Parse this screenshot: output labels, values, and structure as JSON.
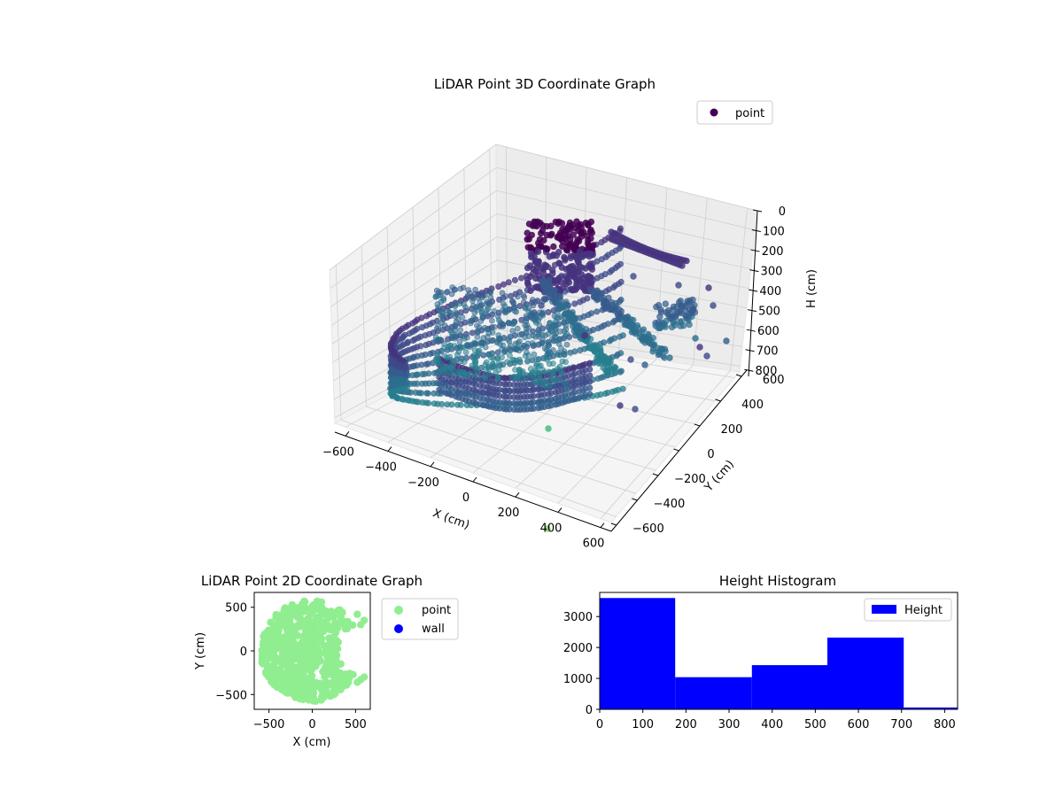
{
  "chart_data": [
    {
      "type": "scatter3d",
      "title": "LiDAR Point 3D Coordinate Graph",
      "xlabel": "X (cm)",
      "ylabel": "Y (cm)",
      "zlabel": "H (cm)",
      "xticks": [
        "−600",
        "−400",
        "−200",
        "0",
        "200",
        "400",
        "600"
      ],
      "yticks": [
        "−600",
        "−400",
        "−200",
        "0",
        "200",
        "400",
        "600"
      ],
      "zticks": [
        "0",
        "100",
        "200",
        "300",
        "400",
        "500",
        "600",
        "700",
        "800"
      ],
      "xlim": [
        -650,
        650
      ],
      "ylim": [
        -650,
        650
      ],
      "zlim": [
        0,
        830
      ],
      "z_inverted": true,
      "colormap": "viridis",
      "legend": {
        "label": "point",
        "color": "#440154",
        "placement": "top-right"
      },
      "grid": true
    },
    {
      "type": "scatter",
      "title": "LiDAR Point 2D Coordinate Graph",
      "xlabel": "X (cm)",
      "ylabel": "Y (cm)",
      "xticks": [
        "−500",
        "0",
        "500"
      ],
      "yticks": [
        "500",
        "0",
        "−500"
      ],
      "xlim": [
        -670,
        670
      ],
      "ylim": [
        -670,
        670
      ],
      "series": [
        {
          "name": "point",
          "color": "#90ee90"
        },
        {
          "name": "wall",
          "color": "#0000ff"
        }
      ],
      "legend_placement": "outside-right"
    },
    {
      "type": "bar",
      "title": "Height Histogram",
      "series_name": "Height",
      "color": "#0000ff",
      "bin_edges": [
        0,
        175,
        353,
        528,
        705,
        830
      ],
      "counts": [
        3600,
        1040,
        1430,
        2320,
        60
      ],
      "xticks": [
        "0",
        "100",
        "200",
        "300",
        "400",
        "500",
        "600",
        "700",
        "800"
      ],
      "yticks": [
        "0",
        "1000",
        "2000",
        "3000"
      ],
      "xlim": [
        0,
        830
      ],
      "ylim": [
        0,
        3780
      ],
      "legend_placement": "top-right"
    }
  ]
}
